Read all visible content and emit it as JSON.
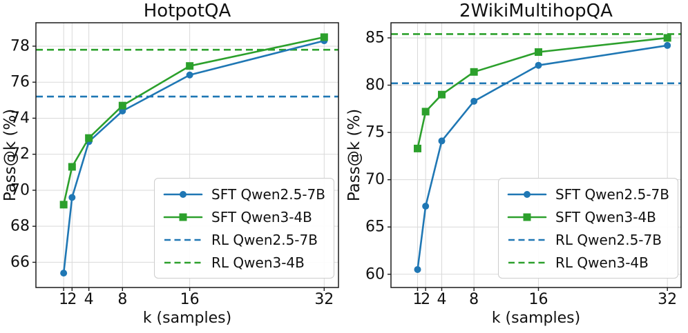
{
  "figure": {
    "background": "#ffffff",
    "text_color": "#111111",
    "grid_color": "#d9d9d9",
    "spine_color": "#1a1a1a",
    "accent_blue": "#1f77b4",
    "accent_green": "#2ca02c"
  },
  "chart_data": [
    {
      "type": "line",
      "title": "HotpotQA",
      "xlabel": "k (samples)",
      "ylabel": "Pass@k (%)",
      "x": [
        1,
        2,
        4,
        8,
        16,
        32
      ],
      "xticks": [
        1,
        2,
        4,
        8,
        16,
        32
      ],
      "yticks": [
        66,
        68,
        70,
        72,
        74,
        76,
        78
      ],
      "xlim": [
        -2.3,
        33.7
      ],
      "ylim": [
        64.6,
        79.3
      ],
      "grid": true,
      "legend_position": "lower right",
      "series": [
        {
          "name": "SFT Qwen2.5-7B",
          "color": "#1f77b4",
          "style": "solid",
          "marker": "circle",
          "values": [
            65.4,
            69.6,
            72.7,
            74.4,
            76.4,
            78.3
          ]
        },
        {
          "name": "SFT Qwen3-4B",
          "color": "#2ca02c",
          "style": "solid",
          "marker": "square",
          "values": [
            69.2,
            71.3,
            72.9,
            74.7,
            76.9,
            78.5
          ]
        },
        {
          "name": "RL Qwen2.5-7B",
          "color": "#1f77b4",
          "style": "dashed",
          "hline": 75.2
        },
        {
          "name": "RL Qwen3-4B",
          "color": "#2ca02c",
          "style": "dashed",
          "hline": 77.8
        }
      ]
    },
    {
      "type": "line",
      "title": "2WikiMultihopQA",
      "xlabel": "k (samples)",
      "ylabel": "Pass@k (%)",
      "x": [
        1,
        2,
        4,
        8,
        16,
        32
      ],
      "xticks": [
        1,
        2,
        4,
        8,
        16,
        32
      ],
      "yticks": [
        60,
        65,
        70,
        75,
        80,
        85
      ],
      "xlim": [
        -2.3,
        33.7
      ],
      "ylim": [
        58.6,
        86.6
      ],
      "grid": true,
      "legend_position": "lower right",
      "series": [
        {
          "name": "SFT Qwen2.5-7B",
          "color": "#1f77b4",
          "style": "solid",
          "marker": "circle",
          "values": [
            60.5,
            67.2,
            74.1,
            78.3,
            82.1,
            84.2
          ]
        },
        {
          "name": "SFT Qwen3-4B",
          "color": "#2ca02c",
          "style": "solid",
          "marker": "square",
          "values": [
            73.3,
            77.2,
            79.0,
            81.4,
            83.5,
            85.0
          ]
        },
        {
          "name": "RL Qwen2.5-7B",
          "color": "#1f77b4",
          "style": "dashed",
          "hline": 80.2
        },
        {
          "name": "RL Qwen3-4B",
          "color": "#2ca02c",
          "style": "dashed",
          "hline": 85.4
        }
      ]
    }
  ]
}
